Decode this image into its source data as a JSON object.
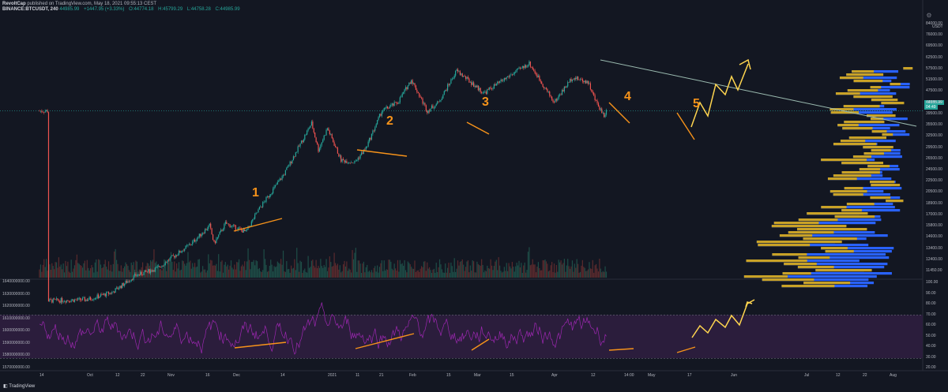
{
  "header": {
    "author": "RevoltCap",
    "published": "published on TradingView.com, May 18, 2021 09:55:13 CEST",
    "symbol": "BINANCE:BTCUSDT, 240",
    "last": "44985.99",
    "change": "+1447.95 (+3.33%)",
    "ohlc": {
      "o": "O:44774.18",
      "h": "H:45799.29",
      "l": "L:44758.28",
      "c": "C:44985.99"
    }
  },
  "icons": {
    "settings": "gear-icon",
    "brand": "tradingview-logo-icon"
  },
  "footer": {
    "brand": "TradingView"
  },
  "colors": {
    "accent": "#f7931a",
    "up": "#26a69a",
    "down": "#ef5350",
    "rsi": "#9c27b0",
    "vp_up": "#2962ff",
    "vp_down": "#c9a227",
    "bg": "#131722"
  },
  "annotations": [
    "1",
    "2",
    "3",
    "4",
    "5"
  ],
  "price_tags": {
    "last": "44985.99",
    "countdown": "04:49"
  },
  "chart_data": [
    {
      "type": "candlestick",
      "title": "BINANCE:BTCUSDT, 240",
      "scale": "log",
      "ylim": [
        11450,
        84000
      ],
      "y_ticks": [
        "84000.00",
        "76000.00",
        "69500.00",
        "62500.00",
        "57500.00",
        "51500.00",
        "47500.00",
        "43500.00",
        "39500.00",
        "35500.00",
        "32500.00",
        "29500.00",
        "26500.00",
        "24500.00",
        "22500.00",
        "20500.00",
        "18900.00",
        "17000.00",
        "15800.00",
        "14600.00",
        "13400.00",
        "12400.00",
        "11450.00"
      ],
      "y_axis_unit": "USDT",
      "x_ticks": [
        "14",
        "Oct",
        "12",
        "22",
        "Nov",
        "16",
        "Dec",
        "14",
        "2021",
        "11",
        "21",
        "Feb",
        "15",
        "Mar",
        "15",
        "Apr",
        "12",
        "14:00",
        "May",
        "17",
        "Jun",
        "Jul",
        "12",
        "22",
        "Aug"
      ],
      "close_path": [
        [
          "Sep 14",
          10700
        ],
        [
          "Oct 1",
          10800
        ],
        [
          "Oct 12",
          11400
        ],
        [
          "Oct 22",
          12900
        ],
        [
          "Nov 1",
          13700
        ],
        [
          "Nov 16",
          16500
        ],
        [
          "Nov 24",
          18900
        ],
        [
          "Nov 26",
          16500
        ],
        [
          "Dec 1",
          19200
        ],
        [
          "Dec 10",
          18000
        ],
        [
          "Dec 16",
          21500
        ],
        [
          "Dec 27",
          28000
        ],
        [
          "Jan 8",
          41000
        ],
        [
          "Jan 11",
          33500
        ],
        [
          "Jan 15",
          39500
        ],
        [
          "Jan 21",
          31000
        ],
        [
          "Jan 27",
          30500
        ],
        [
          "Feb 1",
          34000
        ],
        [
          "Feb 8",
          45000
        ],
        [
          "Feb 15",
          48000
        ],
        [
          "Feb 21",
          57000
        ],
        [
          "Feb 28",
          45000
        ],
        [
          "Mar 5",
          48000
        ],
        [
          "Mar 13",
          61000
        ],
        [
          "Mar 25",
          51500
        ],
        [
          "Apr 5",
          58500
        ],
        [
          "Apr 14",
          64500
        ],
        [
          "Apr 25",
          48000
        ],
        [
          "May 3",
          58000
        ],
        [
          "May 10",
          56000
        ],
        [
          "May 13",
          49000
        ],
        [
          "May 17",
          43500
        ],
        [
          "May 18",
          44985.99
        ]
      ],
      "horizontal_line": 44985.99,
      "last_price": 44985.99,
      "volume_profile": "visible range, right side"
    },
    {
      "type": "line",
      "title": "RSI",
      "ylim": [
        20,
        100
      ],
      "y_ticks": [
        "100.00",
        "90.00",
        "80.00",
        "70.00",
        "60.00",
        "50.00",
        "40.00",
        "30.00",
        "20.00"
      ],
      "bands": [
        30,
        70
      ],
      "left_axis_ticks": [
        "1640000000.00",
        "1630000000.00",
        "1620000000.00",
        "1610000000.00",
        "1600000000.00",
        "1590000000.00",
        "1580000000.00",
        "1570000000.00"
      ],
      "series": [
        {
          "values_summary": "oscillates 30–88"
        }
      ]
    }
  ]
}
